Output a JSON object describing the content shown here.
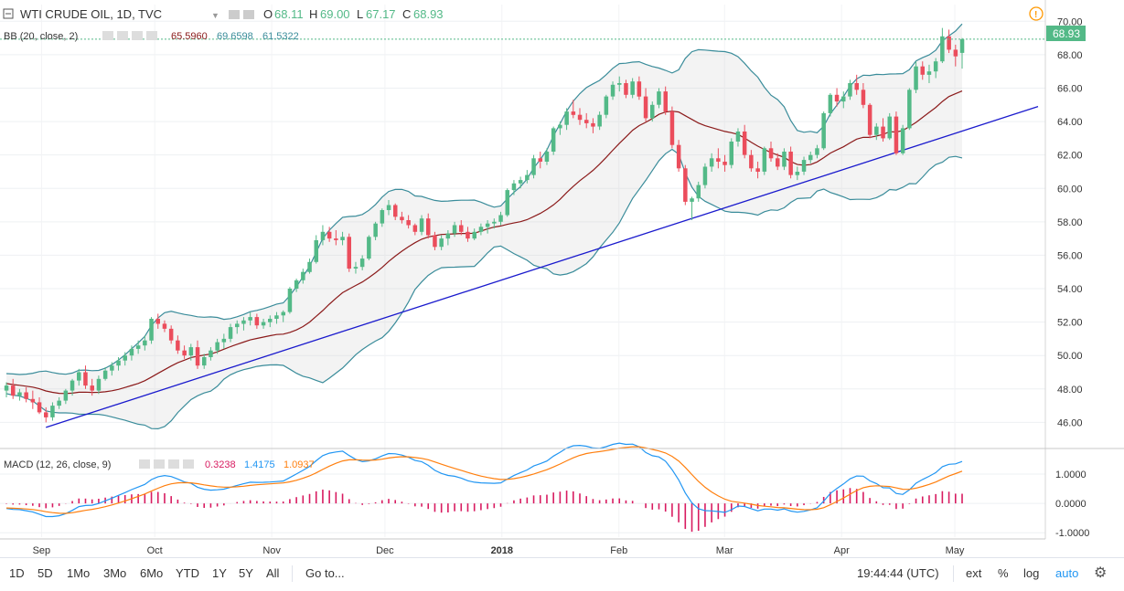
{
  "header": {
    "symbol": "WTI CRUDE OIL, 1D, TVC",
    "o_label": "O",
    "o": "68.11",
    "h_label": "H",
    "h": "69.00",
    "l_label": "L",
    "l": "67.17",
    "c_label": "C",
    "c": "68.93",
    "bb_label": "BB (20, close, 2)",
    "bb_mid": "65.5960",
    "bb_up": "69.6598",
    "bb_low": "61.5322",
    "macd_label": "MACD (12, 26, close, 9)",
    "macd_hist": "0.3238",
    "macd_line": "1.4175",
    "macd_signal": "1.0937"
  },
  "price_badge": "68.93",
  "toolbar": {
    "timeframes": [
      "1D",
      "5D",
      "1Mo",
      "3Mo",
      "6Mo",
      "YTD",
      "1Y",
      "5Y",
      "All"
    ],
    "goto": "Go to...",
    "clock": "19:44:44 (UTC)",
    "ext": "ext",
    "pct": "%",
    "log": "log",
    "auto": "auto"
  },
  "colors": {
    "up": "#53b987",
    "down": "#eb4d5c",
    "bb_band": "#3a8c9a",
    "bb_basis": "#8b1a1a",
    "trendline": "#1a1acd",
    "macd_line": "#2196f3",
    "signal_line": "#ff7f0e",
    "hist": "#d81b60",
    "price_badge": "#53b987",
    "accent": "#2196f3"
  },
  "chart_data": {
    "type": "candlestick",
    "title": "WTI CRUDE OIL, 1D, TVC",
    "price_axis": {
      "ticks": [
        "46.00",
        "48.00",
        "50.00",
        "52.00",
        "54.00",
        "56.00",
        "58.00",
        "60.00",
        "62.00",
        "64.00",
        "66.00",
        "68.00",
        "70.00"
      ],
      "range": [
        44.6,
        71.0
      ]
    },
    "macd_axis": {
      "ticks": [
        "1.0000",
        "0.0000",
        "-1.0000"
      ],
      "range": [
        -1.15,
        1.75
      ]
    },
    "time_axis": [
      "Sep",
      "Oct",
      "Nov",
      "Dec",
      "2018",
      "Feb",
      "Mar",
      "Apr",
      "May"
    ],
    "date_range": [
      "2017-08-21",
      "2018-05-25"
    ],
    "last_candle_date": "2018-04-24",
    "candles": [
      [
        47.9,
        48.4,
        47.5,
        48.2
      ],
      [
        48.2,
        48.6,
        47.4,
        47.6
      ],
      [
        47.6,
        48.0,
        47.3,
        47.8
      ],
      [
        47.8,
        48.1,
        47.2,
        47.4
      ],
      [
        47.4,
        47.9,
        46.8,
        47.2
      ],
      [
        47.2,
        47.5,
        46.5,
        46.6
      ],
      [
        46.6,
        46.9,
        46.0,
        46.3
      ],
      [
        46.3,
        47.2,
        46.1,
        47.0
      ],
      [
        47.0,
        47.5,
        46.8,
        47.3
      ],
      [
        47.3,
        48.0,
        47.1,
        47.9
      ],
      [
        47.9,
        48.6,
        47.6,
        48.5
      ],
      [
        48.5,
        49.2,
        48.2,
        49.0
      ],
      [
        49.0,
        49.4,
        48.0,
        48.2
      ],
      [
        48.2,
        48.6,
        47.6,
        47.9
      ],
      [
        47.9,
        48.8,
        47.7,
        48.6
      ],
      [
        48.6,
        49.3,
        48.5,
        49.1
      ],
      [
        49.1,
        49.6,
        48.8,
        49.4
      ],
      [
        49.4,
        49.9,
        49.1,
        49.7
      ],
      [
        49.7,
        50.2,
        49.4,
        50.0
      ],
      [
        50.0,
        50.6,
        49.7,
        50.4
      ],
      [
        50.4,
        50.9,
        50.1,
        50.6
      ],
      [
        50.6,
        51.2,
        50.3,
        50.9
      ],
      [
        50.9,
        52.3,
        50.7,
        52.2
      ],
      [
        52.2,
        52.5,
        51.6,
        51.9
      ],
      [
        51.9,
        52.1,
        51.4,
        51.6
      ],
      [
        51.6,
        51.8,
        50.7,
        50.9
      ],
      [
        50.9,
        51.2,
        50.1,
        50.3
      ],
      [
        50.3,
        50.6,
        49.8,
        50.0
      ],
      [
        50.0,
        50.7,
        49.7,
        50.5
      ],
      [
        50.5,
        50.9,
        49.2,
        49.4
      ],
      [
        49.4,
        50.1,
        49.2,
        49.9
      ],
      [
        49.9,
        50.5,
        49.7,
        50.3
      ],
      [
        50.3,
        51.0,
        50.1,
        50.8
      ],
      [
        50.8,
        51.3,
        50.4,
        51.0
      ],
      [
        51.0,
        51.9,
        50.8,
        51.7
      ],
      [
        51.7,
        52.1,
        51.3,
        51.9
      ],
      [
        51.9,
        52.3,
        51.5,
        52.1
      ],
      [
        52.1,
        52.6,
        51.8,
        52.3
      ],
      [
        52.3,
        52.5,
        51.6,
        51.8
      ],
      [
        51.8,
        52.2,
        51.6,
        52.0
      ],
      [
        52.0,
        52.4,
        51.7,
        52.2
      ],
      [
        52.2,
        52.6,
        51.9,
        52.4
      ],
      [
        52.4,
        52.7,
        52.0,
        52.6
      ],
      [
        52.6,
        54.1,
        52.5,
        54.0
      ],
      [
        54.0,
        54.6,
        53.8,
        54.5
      ],
      [
        54.5,
        55.2,
        54.3,
        55.0
      ],
      [
        55.0,
        55.8,
        54.9,
        55.6
      ],
      [
        55.6,
        57.2,
        55.5,
        56.9
      ],
      [
        56.9,
        57.8,
        56.6,
        57.4
      ],
      [
        57.4,
        57.7,
        56.8,
        57.0
      ],
      [
        57.0,
        57.5,
        56.6,
        56.9
      ],
      [
        56.9,
        57.4,
        56.6,
        57.1
      ],
      [
        57.1,
        57.3,
        55.0,
        55.2
      ],
      [
        55.2,
        55.6,
        54.9,
        55.3
      ],
      [
        55.3,
        56.0,
        55.1,
        55.8
      ],
      [
        55.8,
        57.2,
        55.7,
        57.1
      ],
      [
        57.1,
        58.0,
        56.9,
        57.9
      ],
      [
        57.9,
        58.8,
        57.7,
        58.7
      ],
      [
        58.7,
        59.3,
        58.4,
        59.0
      ],
      [
        59.0,
        59.1,
        58.1,
        58.3
      ],
      [
        58.3,
        58.6,
        57.9,
        58.1
      ],
      [
        58.1,
        58.4,
        57.6,
        57.8
      ],
      [
        57.8,
        57.9,
        57.2,
        57.4
      ],
      [
        57.4,
        58.4,
        57.2,
        58.2
      ],
      [
        58.2,
        58.5,
        57.0,
        57.2
      ],
      [
        57.2,
        57.4,
        56.3,
        56.5
      ],
      [
        56.5,
        57.2,
        56.3,
        57.0
      ],
      [
        57.0,
        57.5,
        56.6,
        57.3
      ],
      [
        57.3,
        58.0,
        57.1,
        57.8
      ],
      [
        57.8,
        58.1,
        57.2,
        57.4
      ],
      [
        57.4,
        57.7,
        56.8,
        57.0
      ],
      [
        57.0,
        57.6,
        56.9,
        57.4
      ],
      [
        57.4,
        57.9,
        57.2,
        57.7
      ],
      [
        57.7,
        58.1,
        57.3,
        57.9
      ],
      [
        57.9,
        58.2,
        57.6,
        58.0
      ],
      [
        58.0,
        58.6,
        57.8,
        58.4
      ],
      [
        58.4,
        60.0,
        58.3,
        59.9
      ],
      [
        59.9,
        60.5,
        59.6,
        60.3
      ],
      [
        60.3,
        60.7,
        60.0,
        60.5
      ],
      [
        60.5,
        61.1,
        60.3,
        60.8
      ],
      [
        60.8,
        62.0,
        60.6,
        61.8
      ],
      [
        61.8,
        62.2,
        61.2,
        61.6
      ],
      [
        61.6,
        62.4,
        61.4,
        62.2
      ],
      [
        62.2,
        63.7,
        62.0,
        63.6
      ],
      [
        63.6,
        64.0,
        63.2,
        63.8
      ],
      [
        63.8,
        64.8,
        63.5,
        64.6
      ],
      [
        64.6,
        65.3,
        64.2,
        64.4
      ],
      [
        64.4,
        64.8,
        63.8,
        64.1
      ],
      [
        64.1,
        64.5,
        63.6,
        63.9
      ],
      [
        63.9,
        64.2,
        63.3,
        63.7
      ],
      [
        63.7,
        64.6,
        63.5,
        64.4
      ],
      [
        64.4,
        65.6,
        64.2,
        65.5
      ],
      [
        65.5,
        66.4,
        65.3,
        66.2
      ],
      [
        66.2,
        66.7,
        65.8,
        66.3
      ],
      [
        66.3,
        66.5,
        65.4,
        65.6
      ],
      [
        65.6,
        66.6,
        65.4,
        66.4
      ],
      [
        66.4,
        66.7,
        65.3,
        65.5
      ],
      [
        65.5,
        66.0,
        64.0,
        64.2
      ],
      [
        64.2,
        65.2,
        64.0,
        65.0
      ],
      [
        65.0,
        66.0,
        64.8,
        65.8
      ],
      [
        65.8,
        66.1,
        64.4,
        64.6
      ],
      [
        64.6,
        64.9,
        62.4,
        62.6
      ],
      [
        62.6,
        62.9,
        61.0,
        61.2
      ],
      [
        61.2,
        61.4,
        59.0,
        59.2
      ],
      [
        59.2,
        59.5,
        58.1,
        59.4
      ],
      [
        59.4,
        60.4,
        59.2,
        60.2
      ],
      [
        60.2,
        61.5,
        60.0,
        61.3
      ],
      [
        61.3,
        62.1,
        61.0,
        61.8
      ],
      [
        61.8,
        62.4,
        61.2,
        61.6
      ],
      [
        61.6,
        62.0,
        61.0,
        61.4
      ],
      [
        61.4,
        63.0,
        61.2,
        62.8
      ],
      [
        62.8,
        63.6,
        62.5,
        63.4
      ],
      [
        63.4,
        63.8,
        61.8,
        62.0
      ],
      [
        62.0,
        62.3,
        61.0,
        61.2
      ],
      [
        61.2,
        61.6,
        60.6,
        61.0
      ],
      [
        61.0,
        62.5,
        60.8,
        62.4
      ],
      [
        62.4,
        62.8,
        61.6,
        61.8
      ],
      [
        61.8,
        62.1,
        61.1,
        61.3
      ],
      [
        61.3,
        62.4,
        61.1,
        62.2
      ],
      [
        62.2,
        62.5,
        60.6,
        60.8
      ],
      [
        60.8,
        61.3,
        60.5,
        61.0
      ],
      [
        61.0,
        61.9,
        60.8,
        61.7
      ],
      [
        61.7,
        62.2,
        61.5,
        62.0
      ],
      [
        62.0,
        62.6,
        61.8,
        62.4
      ],
      [
        62.4,
        64.6,
        62.3,
        64.5
      ],
      [
        64.5,
        65.7,
        64.3,
        65.6
      ],
      [
        65.6,
        66.0,
        64.9,
        65.2
      ],
      [
        65.2,
        65.8,
        64.8,
        65.5
      ],
      [
        65.5,
        66.5,
        65.3,
        66.3
      ],
      [
        66.3,
        66.8,
        65.6,
        65.9
      ],
      [
        65.9,
        66.3,
        64.8,
        65.0
      ],
      [
        65.0,
        65.1,
        63.0,
        63.2
      ],
      [
        63.2,
        63.9,
        62.9,
        63.7
      ],
      [
        63.7,
        64.2,
        62.8,
        63.0
      ],
      [
        63.0,
        64.5,
        62.9,
        64.3
      ],
      [
        64.3,
        64.6,
        62.0,
        62.1
      ],
      [
        62.1,
        63.8,
        62.0,
        63.6
      ],
      [
        63.6,
        66.0,
        63.5,
        65.9
      ],
      [
        65.9,
        67.6,
        65.7,
        67.3
      ],
      [
        67.3,
        67.6,
        66.5,
        66.8
      ],
      [
        66.8,
        67.4,
        66.3,
        67.0
      ],
      [
        67.0,
        67.8,
        66.6,
        67.6
      ],
      [
        67.6,
        69.6,
        67.5,
        69.1
      ],
      [
        69.1,
        69.5,
        68.1,
        68.3
      ],
      [
        68.3,
        68.6,
        67.3,
        67.9
      ],
      [
        68.11,
        69.0,
        67.17,
        68.93
      ]
    ]
  }
}
